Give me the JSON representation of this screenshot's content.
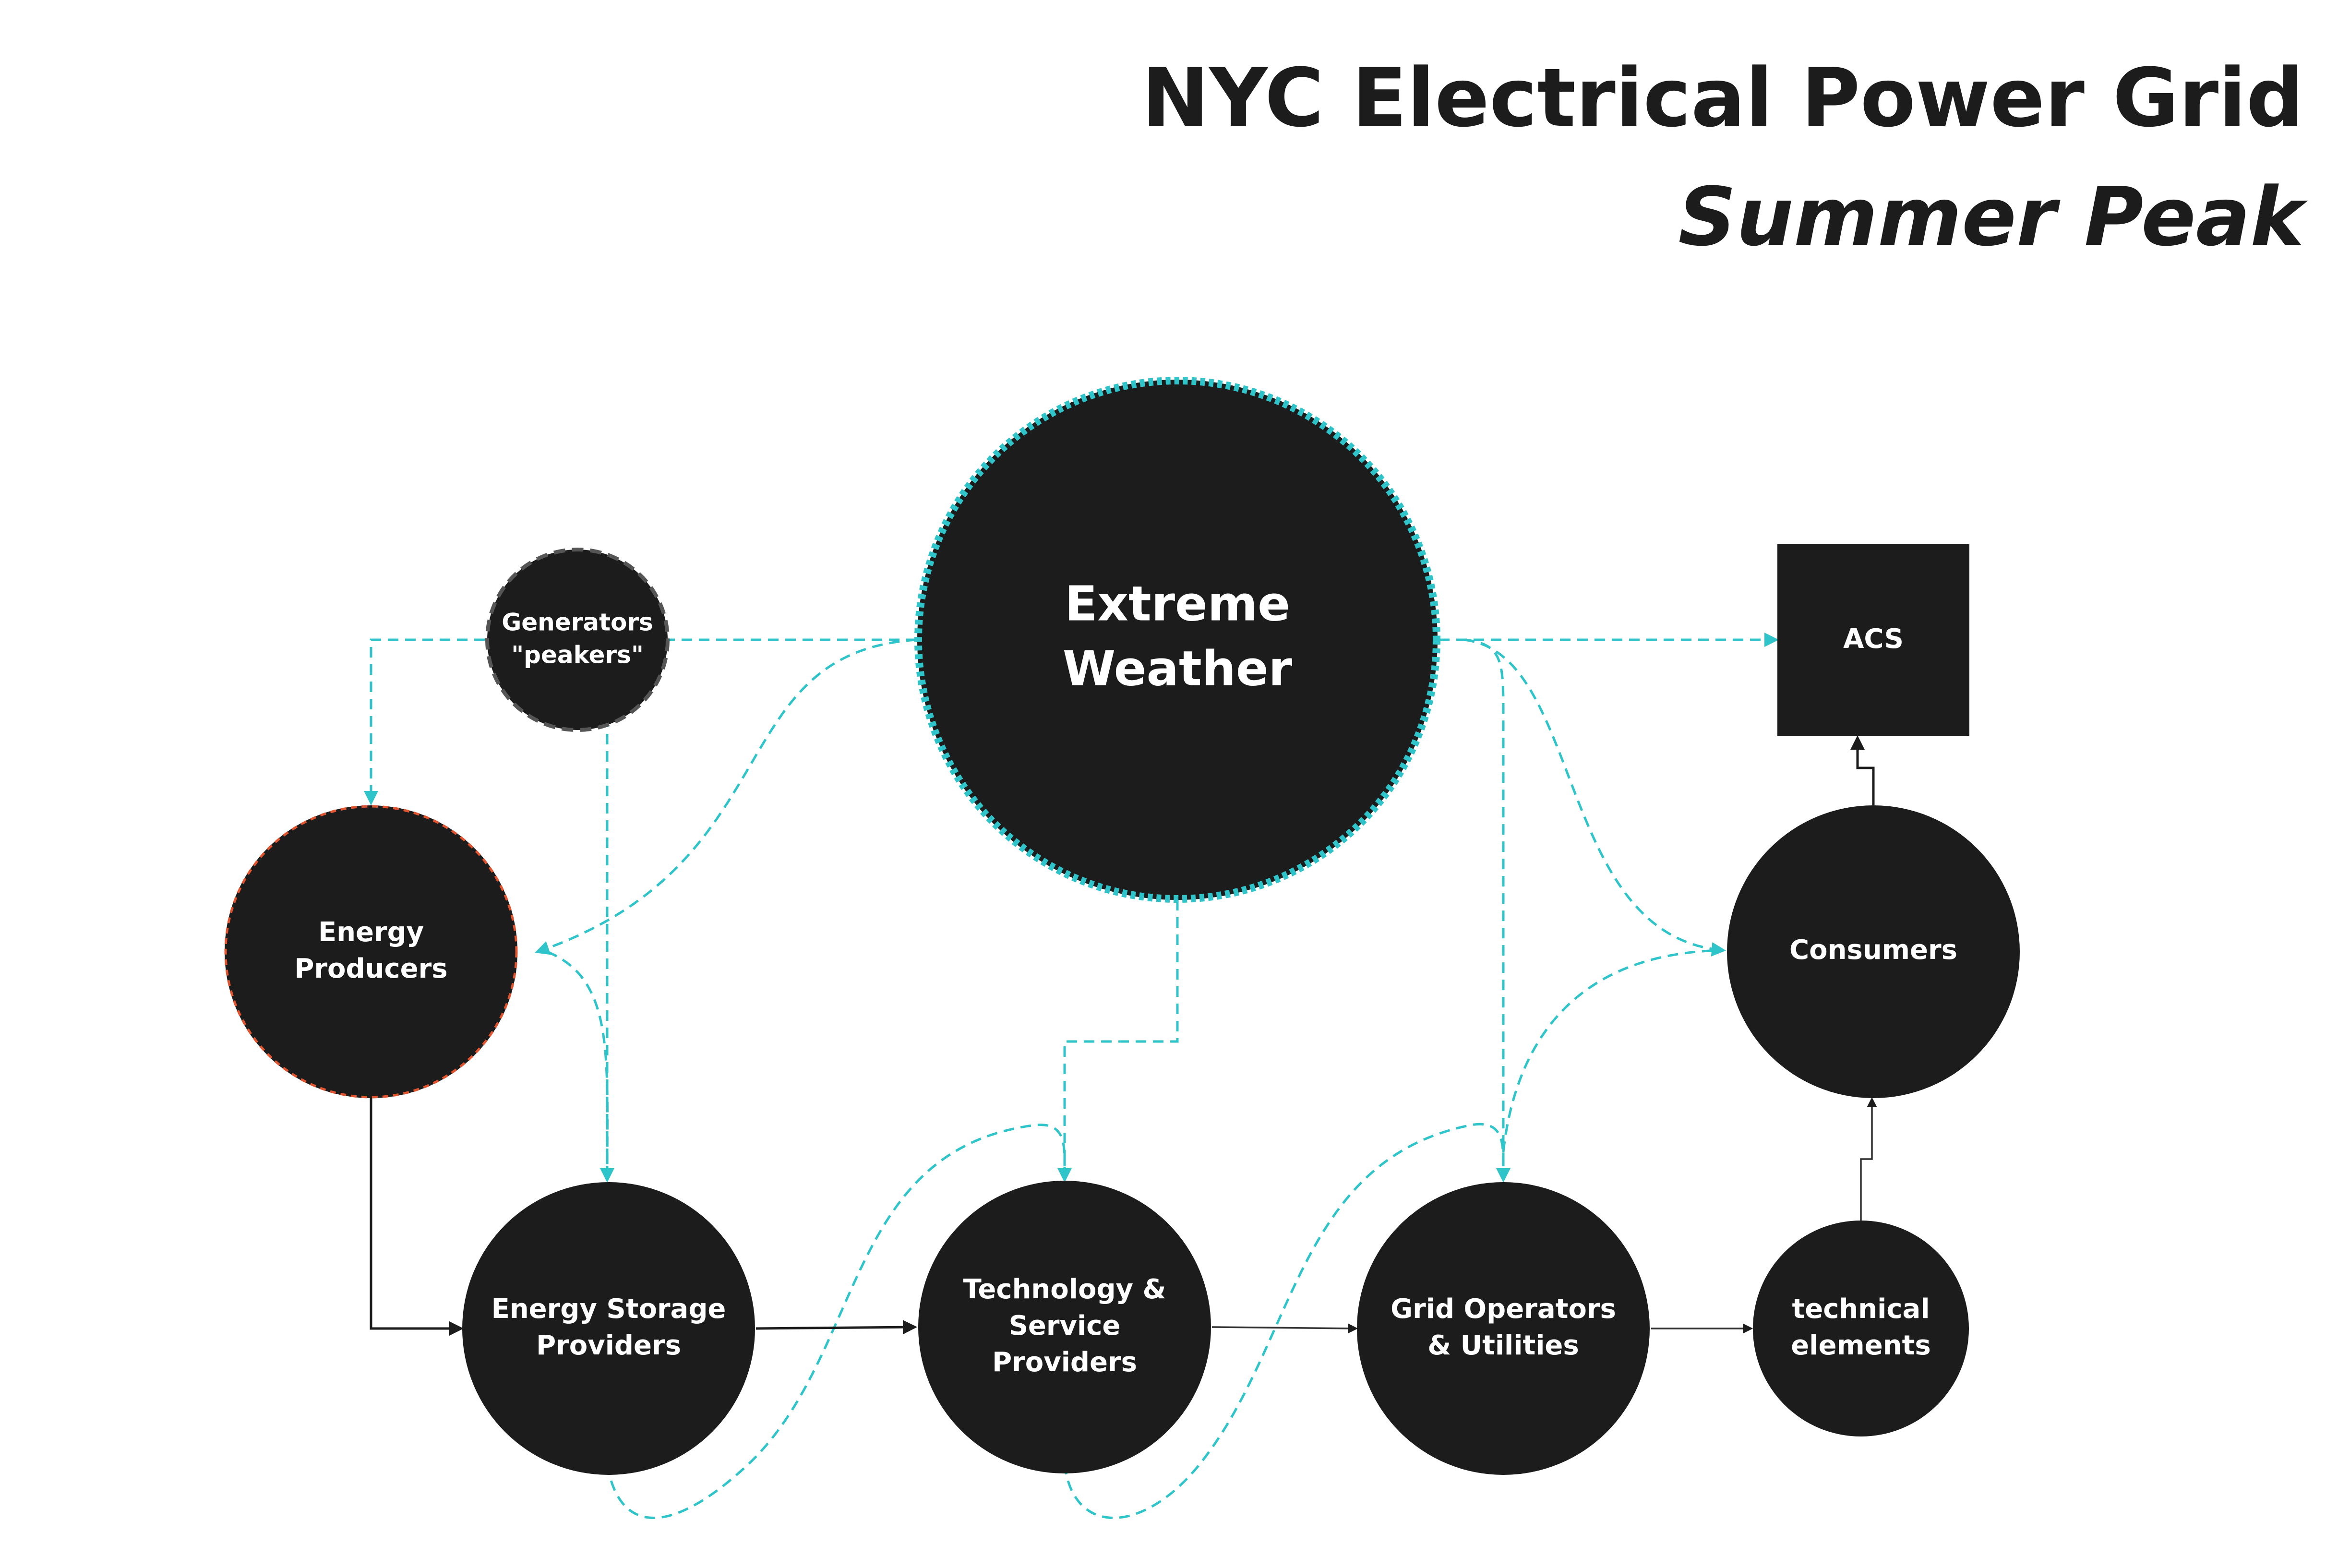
{
  "title": "NYC Electrical Power Grid",
  "subtitle": "Summer Peak",
  "colors": {
    "node_fill": "#1c1c1c",
    "node_text": "#ffffff",
    "influence_line": "#2ec4c9",
    "flow_line": "#1c1c1c",
    "producers_border": "#e0552f",
    "peakers_border": "#555555",
    "weather_border": "#2ec4c9"
  },
  "nodes": {
    "extreme_weather": [
      "Extreme",
      "Weather"
    ],
    "generators": [
      "Generators",
      "\"peakers\""
    ],
    "energy_producers": [
      "Energy",
      "Producers"
    ],
    "energy_storage": [
      "Energy Storage",
      "Providers"
    ],
    "technology_service": [
      "Technology &",
      "Service",
      "Providers"
    ],
    "grid_operators": [
      "Grid Operators",
      "& Utilities"
    ],
    "technical_elements": [
      "technical",
      "elements"
    ],
    "consumers": [
      "Consumers"
    ],
    "acs": [
      "ACS"
    ]
  }
}
